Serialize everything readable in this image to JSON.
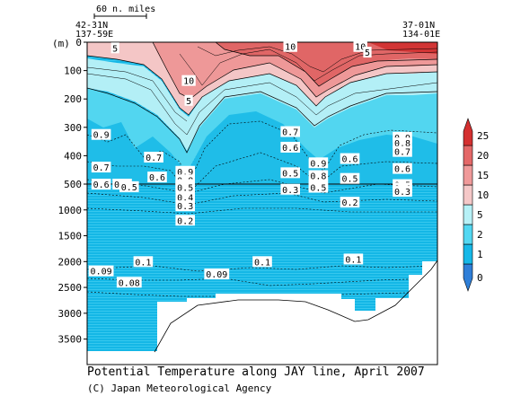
{
  "chart_data": {
    "type": "heatmap",
    "title": "Potential Temperature along JAY line, April 2007",
    "credit": "(C) Japan Meteorological Agency",
    "ylabel": "(m)",
    "y_ticks": [
      "0",
      "100",
      "200",
      "300",
      "400",
      "500",
      "1000",
      "1500",
      "2000",
      "2500",
      "3000",
      "3500"
    ],
    "scale_bar": "60 n. miles",
    "left_position": [
      "42-31N",
      "137-59E"
    ],
    "right_position": [
      "37-01N",
      "134-01E"
    ],
    "colorbar_ticks": [
      "0",
      "1",
      "2",
      "5",
      "10",
      "15",
      "20",
      "25"
    ],
    "colorbar_colors": [
      "#2f7fd8",
      "#16b8e8",
      "#53d8f2",
      "#b7f1f7",
      "#f5c8c8",
      "#f09a9a",
      "#e46868",
      "#d43030"
    ],
    "contour_labels": [
      {
        "text": "5",
        "x": 0.08,
        "depth": 20
      },
      {
        "text": "10",
        "x": 0.58,
        "depth": 15
      },
      {
        "text": "10",
        "x": 0.78,
        "depth": 15
      },
      {
        "text": "5",
        "x": 0.8,
        "depth": 35
      },
      {
        "text": "10",
        "x": 0.29,
        "depth": 135
      },
      {
        "text": "5",
        "x": 0.29,
        "depth": 205
      },
      {
        "text": "0.9",
        "x": 0.04,
        "depth": 325
      },
      {
        "text": "0.7",
        "x": 0.04,
        "depth": 440
      },
      {
        "text": "0.6",
        "x": 0.04,
        "depth": 500
      },
      {
        "text": "0.7",
        "x": 0.1,
        "depth": 500
      },
      {
        "text": "0.5",
        "x": 0.12,
        "depth": 550
      },
      {
        "text": "0.7",
        "x": 0.19,
        "depth": 405
      },
      {
        "text": "0.6",
        "x": 0.2,
        "depth": 475
      },
      {
        "text": "0.9",
        "x": 0.28,
        "depth": 455
      },
      {
        "text": "0.8",
        "x": 0.28,
        "depth": 485
      },
      {
        "text": "0.7",
        "x": 0.28,
        "depth": 510
      },
      {
        "text": "0.6",
        "x": 0.28,
        "depth": 535
      },
      {
        "text": "0.5",
        "x": 0.28,
        "depth": 565
      },
      {
        "text": "0.4",
        "x": 0.28,
        "depth": 750
      },
      {
        "text": "0.3",
        "x": 0.28,
        "depth": 920
      },
      {
        "text": "0.2",
        "x": 0.28,
        "depth": 1200
      },
      {
        "text": "0.7",
        "x": 0.58,
        "depth": 315
      },
      {
        "text": "0.6",
        "x": 0.58,
        "depth": 370
      },
      {
        "text": "0.5",
        "x": 0.58,
        "depth": 460
      },
      {
        "text": "0.3",
        "x": 0.58,
        "depth": 600
      },
      {
        "text": "0.9",
        "x": 0.66,
        "depth": 425
      },
      {
        "text": "0.8",
        "x": 0.66,
        "depth": 470
      },
      {
        "text": "0.6",
        "x": 0.66,
        "depth": 520
      },
      {
        "text": "0.5",
        "x": 0.66,
        "depth": 560
      },
      {
        "text": "0.6",
        "x": 0.75,
        "depth": 410
      },
      {
        "text": "0.5",
        "x": 0.75,
        "depth": 480
      },
      {
        "text": "0.2",
        "x": 0.75,
        "depth": 850
      },
      {
        "text": "0.9",
        "x": 0.9,
        "depth": 335
      },
      {
        "text": "0.8",
        "x": 0.9,
        "depth": 355
      },
      {
        "text": "0.7",
        "x": 0.9,
        "depth": 385
      },
      {
        "text": "0.6",
        "x": 0.9,
        "depth": 445
      },
      {
        "text": "0.5",
        "x": 0.9,
        "depth": 510
      },
      {
        "text": "0.4",
        "x": 0.9,
        "depth": 575
      },
      {
        "text": "0.3",
        "x": 0.9,
        "depth": 640
      },
      {
        "text": "0.1",
        "x": 0.16,
        "depth": 2000
      },
      {
        "text": "0.1",
        "x": 0.5,
        "depth": 2000
      },
      {
        "text": "0.1",
        "x": 0.76,
        "depth": 1950
      },
      {
        "text": "0.09",
        "x": 0.04,
        "depth": 2180
      },
      {
        "text": "0.09",
        "x": 0.37,
        "depth": 2240
      },
      {
        "text": "0.08",
        "x": 0.12,
        "depth": 2400
      }
    ]
  }
}
